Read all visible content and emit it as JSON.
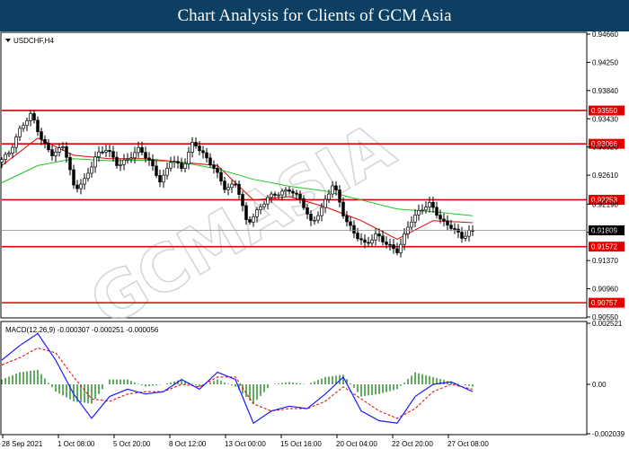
{
  "header": {
    "title": "Chart Analysis for Clients of GCM Asia"
  },
  "main_chart": {
    "symbol_label": "USDCHF,H4",
    "ylim": [
      0.9055,
      0.9466
    ],
    "ticks": [
      "0.94660",
      "0.94250",
      "0.93840",
      "0.93430",
      "0.93020",
      "0.92610",
      "0.92190",
      "0.91780",
      "0.91370",
      "0.90960",
      "0.90550"
    ],
    "current_price": "0.91809",
    "levels": [
      {
        "value": 0.9355,
        "label": "0.93550"
      },
      {
        "value": 0.93066,
        "label": "0.93066"
      },
      {
        "value": 0.92253,
        "label": "0.92253"
      },
      {
        "value": 0.91572,
        "label": "0.91572"
      },
      {
        "value": 0.90757,
        "label": "0.90757"
      }
    ],
    "watermark": "GCMASIA"
  },
  "macd_panel": {
    "label": "MACD(12,26,9) -0.000307 -0.000251 -0.000056",
    "ticks": [
      "0.002521",
      "0.00",
      "-0.002039"
    ],
    "ylim": [
      -0.002039,
      0.002521
    ]
  },
  "x_axis": {
    "labels": [
      "28 Sep 2021",
      "1 Oct 08:00",
      "5 Oct 20:00",
      "8 Oct 12:00",
      "13 Oct 00:00",
      "15 Oct 16:00",
      "20 Oct 04:00",
      "22 Oct 20:00",
      "27 Oct 08:00"
    ]
  },
  "colors": {
    "level_line": "#e00000",
    "ma_fast": "#e00000",
    "ma_slow": "#22c322",
    "macd_hist": "#1f8a1f",
    "macd_signal": "#e00000",
    "macd_line": "#1a1aff",
    "banner": "#0d3f63"
  },
  "chart_data": [
    {
      "type": "candlestick",
      "symbol": "USDCHF",
      "timeframe": "H4",
      "ylim": [
        0.9055,
        0.9466
      ],
      "close_path": [
        [
          0,
          0.928
        ],
        [
          6,
          0.9295
        ],
        [
          12,
          0.933
        ],
        [
          18,
          0.935
        ],
        [
          24,
          0.931
        ],
        [
          30,
          0.929
        ],
        [
          36,
          0.9305
        ],
        [
          42,
          0.924
        ],
        [
          48,
          0.9255
        ],
        [
          54,
          0.929
        ],
        [
          60,
          0.93
        ],
        [
          66,
          0.9275
        ],
        [
          72,
          0.9285
        ],
        [
          78,
          0.93
        ],
        [
          84,
          0.928
        ],
        [
          90,
          0.925
        ],
        [
          96,
          0.9285
        ],
        [
          102,
          0.927
        ],
        [
          108,
          0.931
        ],
        [
          114,
          0.929
        ],
        [
          120,
          0.927
        ],
        [
          126,
          0.924
        ],
        [
          132,
          0.925
        ],
        [
          138,
          0.919
        ],
        [
          144,
          0.921
        ],
        [
          150,
          0.923
        ],
        [
          156,
          0.9235
        ],
        [
          162,
          0.924
        ],
        [
          168,
          0.9225
        ],
        [
          174,
          0.919
        ],
        [
          180,
          0.9215
        ],
        [
          186,
          0.925
        ],
        [
          192,
          0.92
        ],
        [
          198,
          0.9175
        ],
        [
          204,
          0.916
        ],
        [
          210,
          0.9175
        ],
        [
          216,
          0.916
        ],
        [
          222,
          0.915
        ],
        [
          228,
          0.919
        ],
        [
          234,
          0.921
        ],
        [
          240,
          0.922
        ],
        [
          246,
          0.9195
        ],
        [
          252,
          0.9185
        ],
        [
          258,
          0.917
        ],
        [
          262,
          0.918
        ]
      ],
      "moving_averages": [
        {
          "name": "fast",
          "color": "#e00000",
          "path": [
            [
              0,
              0.9275
            ],
            [
              20,
              0.9315
            ],
            [
              40,
              0.929
            ],
            [
              60,
              0.9285
            ],
            [
              80,
              0.9285
            ],
            [
              100,
              0.928
            ],
            [
              120,
              0.9275
            ],
            [
              140,
              0.9225
            ],
            [
              160,
              0.923
            ],
            [
              180,
              0.9215
            ],
            [
              200,
              0.9195
            ],
            [
              220,
              0.9168
            ],
            [
              240,
              0.9195
            ],
            [
              262,
              0.9192
            ]
          ]
        },
        {
          "name": "slow",
          "color": "#22c322",
          "path": [
            [
              0,
              0.925
            ],
            [
              20,
              0.9275
            ],
            [
              40,
              0.9285
            ],
            [
              60,
              0.9282
            ],
            [
              80,
              0.9283
            ],
            [
              100,
              0.928
            ],
            [
              120,
              0.927
            ],
            [
              140,
              0.9255
            ],
            [
              160,
              0.9245
            ],
            [
              180,
              0.9238
            ],
            [
              200,
              0.9225
            ],
            [
              220,
              0.9212
            ],
            [
              240,
              0.9208
            ],
            [
              262,
              0.9202
            ]
          ]
        }
      ],
      "horizontal_levels": [
        0.9355,
        0.93066,
        0.92253,
        0.91572,
        0.90757
      ],
      "current_price": 0.91809
    },
    {
      "type": "macd",
      "params": [
        12,
        26,
        9
      ],
      "values": {
        "macd": -0.000307,
        "signal": -0.000251,
        "histogram": -5.6e-05
      },
      "ylim": [
        -0.002039,
        0.002521
      ],
      "macd_line": [
        [
          0,
          0.001
        ],
        [
          10,
          0.0016
        ],
        [
          20,
          0.0021
        ],
        [
          30,
          0.001
        ],
        [
          40,
          -0.0004
        ],
        [
          50,
          -0.0014
        ],
        [
          60,
          -0.0005
        ],
        [
          70,
          -0.0002
        ],
        [
          80,
          -0.0004
        ],
        [
          90,
          -0.0003
        ],
        [
          100,
          0.0002
        ],
        [
          110,
          -0.0002
        ],
        [
          120,
          0.0005
        ],
        [
          130,
          0.0002
        ],
        [
          140,
          -0.0016
        ],
        [
          150,
          -0.0011
        ],
        [
          160,
          -0.0009
        ],
        [
          170,
          -0.001
        ],
        [
          180,
          -0.0004
        ],
        [
          190,
          0.0003
        ],
        [
          200,
          -0.0011
        ],
        [
          210,
          -0.0015
        ],
        [
          220,
          -0.0016
        ],
        [
          230,
          -0.0005
        ],
        [
          240,
          0.0
        ],
        [
          250,
          0.0001
        ],
        [
          262,
          -0.0003
        ]
      ],
      "signal_line": [
        [
          0,
          0.0008
        ],
        [
          10,
          0.0011
        ],
        [
          20,
          0.0015
        ],
        [
          30,
          0.0013
        ],
        [
          40,
          0.0003
        ],
        [
          50,
          -0.0006
        ],
        [
          60,
          -0.0007
        ],
        [
          70,
          -0.0004
        ],
        [
          80,
          -0.0003
        ],
        [
          90,
          -0.0003
        ],
        [
          100,
          0.0
        ],
        [
          110,
          -0.0001
        ],
        [
          120,
          0.0003
        ],
        [
          130,
          0.0003
        ],
        [
          140,
          -0.0008
        ],
        [
          150,
          -0.0011
        ],
        [
          160,
          -0.001
        ],
        [
          170,
          -0.001
        ],
        [
          180,
          -0.0007
        ],
        [
          190,
          -0.0001
        ],
        [
          200,
          -0.0006
        ],
        [
          210,
          -0.0011
        ],
        [
          220,
          -0.0014
        ],
        [
          230,
          -0.001
        ],
        [
          240,
          -0.0003
        ],
        [
          250,
          0.0
        ],
        [
          262,
          -0.0002
        ]
      ],
      "histogram": [
        [
          0,
          0.0002
        ],
        [
          10,
          0.0005
        ],
        [
          20,
          0.0006
        ],
        [
          30,
          -0.0003
        ],
        [
          40,
          -0.0007
        ],
        [
          50,
          -0.0008
        ],
        [
          60,
          0.0002
        ],
        [
          70,
          0.0002
        ],
        [
          80,
          -0.0001
        ],
        [
          90,
          0.0
        ],
        [
          100,
          0.0002
        ],
        [
          110,
          -0.0001
        ],
        [
          120,
          0.0002
        ],
        [
          130,
          -0.0001
        ],
        [
          140,
          -0.0008
        ],
        [
          150,
          0.0
        ],
        [
          160,
          0.0001
        ],
        [
          170,
          0.0
        ],
        [
          180,
          0.0003
        ],
        [
          190,
          0.0004
        ],
        [
          200,
          -0.0005
        ],
        [
          210,
          -0.0004
        ],
        [
          220,
          -0.0002
        ],
        [
          230,
          0.0005
        ],
        [
          240,
          0.0003
        ],
        [
          250,
          0.0001
        ],
        [
          262,
          -0.0001
        ]
      ]
    }
  ]
}
